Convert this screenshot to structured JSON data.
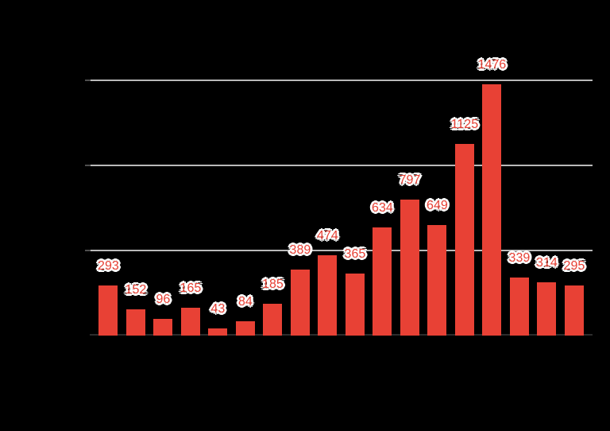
{
  "chart_data": {
    "type": "bar",
    "title": "",
    "values": [
      293,
      152,
      96,
      165,
      43,
      84,
      185,
      389,
      474,
      365,
      634,
      797,
      649,
      1125,
      1476,
      339,
      314,
      295
    ],
    "show_data_labels": true,
    "yticks": [
      500,
      1000,
      1500
    ],
    "ylim": [
      0,
      1583
    ],
    "grid": true,
    "legend_position": "none"
  },
  "colors": {
    "background": "#000000",
    "bar": "#e84135",
    "data_label": "#e84135",
    "data_label_halo": "#ffffff",
    "gridline": "#b9b9b9",
    "axis_line": "#2d2d2d"
  }
}
